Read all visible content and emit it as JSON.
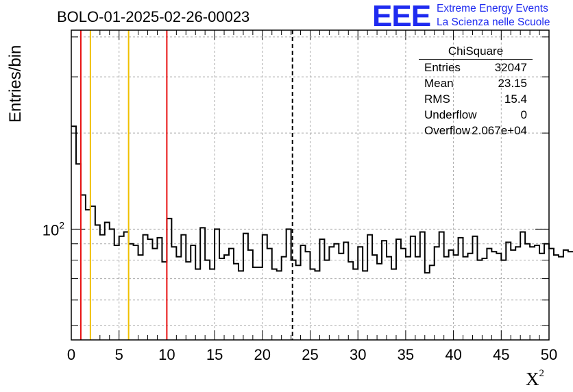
{
  "chart_data": {
    "type": "histogram",
    "title": "BOLO-01-2025-02-26-00023",
    "xlabel": "X",
    "xlabel_superscript": "2",
    "ylabel": "Entries/bin",
    "xlim": [
      0,
      50
    ],
    "ylim": [
      45,
      420
    ],
    "y_scale": "log",
    "x_ticks": [
      0,
      5,
      10,
      15,
      20,
      25,
      30,
      35,
      40,
      45,
      50
    ],
    "y_tick_label_base": "10",
    "y_tick_label_exp": "2",
    "grid": true,
    "bin_width": 0.5,
    "bin_values": [
      210,
      160,
      128,
      115,
      118,
      103,
      96,
      105,
      100,
      89,
      95,
      98,
      90,
      89,
      83,
      96,
      93,
      87,
      94,
      79,
      108,
      88,
      82,
      96,
      79,
      89,
      75,
      101,
      80,
      75,
      100,
      81,
      83,
      87,
      78,
      74,
      97,
      86,
      76,
      76,
      96,
      87,
      75,
      74,
      82,
      100,
      80,
      77,
      89,
      85,
      75,
      74,
      93,
      80,
      88,
      90,
      84,
      91,
      79,
      75,
      88,
      74,
      96,
      83,
      78,
      92,
      82,
      75,
      93,
      87,
      82,
      95,
      82,
      98,
      73,
      77,
      88,
      98,
      82,
      86,
      83,
      94,
      82,
      84,
      95,
      80,
      81,
      87,
      85,
      84,
      80,
      91,
      86,
      88,
      98,
      90,
      88,
      89,
      84,
      90,
      87,
      83,
      82,
      86,
      85,
      85,
      84,
      88,
      88,
      82,
      84,
      86,
      83,
      85,
      86,
      92,
      81,
      85,
      87,
      90,
      84,
      92,
      78,
      80,
      82,
      85,
      85,
      87,
      88,
      84,
      90,
      83,
      82,
      84,
      86,
      81,
      84,
      87,
      83,
      88,
      90,
      82,
      86,
      80,
      84,
      87,
      82,
      84,
      88,
      90,
      86,
      82,
      80,
      84,
      88,
      87,
      84,
      82,
      85,
      87,
      89,
      84,
      83,
      85,
      80,
      84,
      88,
      92,
      86,
      82,
      84,
      86,
      90,
      84,
      78,
      80,
      82,
      86,
      84,
      88,
      80,
      84,
      86,
      82,
      88,
      90,
      84,
      86,
      83,
      85,
      88,
      84,
      82,
      86,
      88,
      84,
      87,
      83,
      85,
      85
    ],
    "vertical_lines": [
      {
        "x": 1,
        "color": "#e81010",
        "style": "solid"
      },
      {
        "x": 2,
        "color": "#f0c000",
        "style": "solid"
      },
      {
        "x": 6,
        "color": "#f0c000",
        "style": "solid"
      },
      {
        "x": 10,
        "color": "#e81010",
        "style": "solid"
      },
      {
        "x": 23.15,
        "color": "#000000",
        "style": "dashed"
      }
    ]
  },
  "logo": {
    "text": "EEE",
    "line1": "Extreme Energy Events",
    "line2": "La Scienza nelle Scuole",
    "color": "#1f2bf0"
  },
  "stats": {
    "title": "ChiSquare",
    "rows": [
      {
        "key": "Entries",
        "value": "32047"
      },
      {
        "key": "Mean",
        "value": "23.15"
      },
      {
        "key": "RMS",
        "value": "15.4"
      },
      {
        "key": "Underflow",
        "value": "0"
      },
      {
        "key": "Overflow",
        "value": "2.067e+04"
      }
    ]
  }
}
